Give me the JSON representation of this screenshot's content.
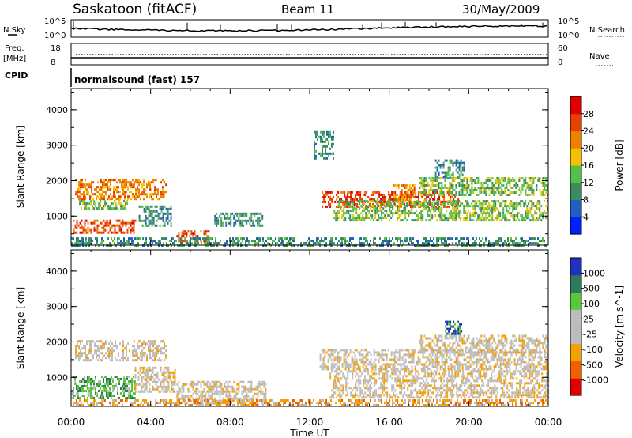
{
  "header": {
    "station": "Saskatoon (fitACF)",
    "beam": "Beam 11",
    "date": "30/May/2009"
  },
  "noise_panel": {
    "left_label": "N.Sky",
    "right_label": "N.Search",
    "left_ticks": [
      "10^5",
      "10^0"
    ],
    "right_ticks": [
      "10^5",
      "10^0"
    ]
  },
  "freq_panel": {
    "left_label_1": "Freq.",
    "left_label_2": "[MHz]",
    "right_label": "Nave",
    "left_ticks": [
      "18",
      "8"
    ],
    "right_ticks": [
      "60",
      "0"
    ]
  },
  "cpid": {
    "label": "CPID",
    "text": "normalsound (fast) 157"
  },
  "colors": {
    "power": [
      "#0020ff",
      "#1f5fbf",
      "#3c8a60",
      "#55c048",
      "#f4c000",
      "#f08000",
      "#e84000",
      "#e00000"
    ],
    "velocity": [
      "#e00000",
      "#f06000",
      "#f4a000",
      "#bcbcbc",
      "#bcbcbc",
      "#58c838",
      "#2f7a5c",
      "#2030c0"
    ],
    "ground_scatter": "#bcbcbc"
  },
  "chart_data": [
    {
      "type": "heatmap",
      "title": "Power",
      "ylabel": "Slant Range [km]",
      "xlabel": "",
      "x_ticks": [
        "00:00",
        "04:00",
        "08:00",
        "12:00",
        "16:00",
        "20:00",
        "00:00"
      ],
      "y_ticks": [
        "1000",
        "2000",
        "3000",
        "4000"
      ],
      "ylim": [
        180,
        4600
      ],
      "xlim_hours": [
        0,
        24
      ],
      "colorbar_label": "Power [dB]",
      "colorbar_ticks": [
        "4",
        "8",
        "12",
        "16",
        "20",
        "24",
        "28"
      ],
      "colorbar_range": [
        0,
        32
      ],
      "regions": [
        {
          "t0": 0.2,
          "t1": 4.8,
          "r0": 1450,
          "r1": 2050,
          "level": 5
        },
        {
          "t0": 0.4,
          "t1": 2.8,
          "r0": 1200,
          "r1": 1450,
          "level": 3
        },
        {
          "t0": 0.1,
          "t1": 3.2,
          "r0": 500,
          "r1": 900,
          "level": 6
        },
        {
          "t0": 3.4,
          "t1": 5.0,
          "r0": 700,
          "r1": 1300,
          "level": 2
        },
        {
          "t0": 5.3,
          "t1": 7.0,
          "r0": 330,
          "r1": 600,
          "level": 6
        },
        {
          "t0": 7.2,
          "t1": 9.6,
          "r0": 700,
          "r1": 1100,
          "level": 2
        },
        {
          "t0": 12.2,
          "t1": 13.2,
          "r0": 2600,
          "r1": 3400,
          "level": 2
        },
        {
          "t0": 12.6,
          "t1": 19.5,
          "r0": 1250,
          "r1": 1700,
          "level": 6
        },
        {
          "t0": 13.2,
          "t1": 24.0,
          "r0": 900,
          "r1": 1450,
          "level": 3
        },
        {
          "t0": 16.2,
          "t1": 17.3,
          "r0": 1450,
          "r1": 1900,
          "level": 5
        },
        {
          "t0": 17.5,
          "t1": 24.0,
          "r0": 1600,
          "r1": 2100,
          "level": 3
        },
        {
          "t0": 18.3,
          "t1": 19.8,
          "r0": 2100,
          "r1": 2600,
          "level": 2
        },
        {
          "t0": 0.0,
          "t1": 24.0,
          "r0": 180,
          "r1": 400,
          "level": 2
        }
      ]
    },
    {
      "type": "heatmap",
      "title": "Velocity",
      "ylabel": "Slant Range [km]",
      "xlabel": "Time UT",
      "x_ticks": [
        "00:00",
        "04:00",
        "08:00",
        "12:00",
        "16:00",
        "20:00",
        "00:00"
      ],
      "y_ticks": [
        "1000",
        "2000",
        "3000",
        "4000"
      ],
      "ylim": [
        180,
        4600
      ],
      "xlim_hours": [
        0,
        24
      ],
      "colorbar_label": "Velocity [m s^-1]",
      "colorbar_ticks": [
        "1000",
        "500",
        "100",
        "25",
        "-25",
        "-100",
        "-500",
        "-1000"
      ],
      "regions": [
        {
          "t0": 0.2,
          "t1": 4.8,
          "r0": 1450,
          "r1": 2050,
          "level": 3
        },
        {
          "t0": 0.0,
          "t1": 3.2,
          "r0": 400,
          "r1": 1050,
          "level": 5
        },
        {
          "t0": 3.2,
          "t1": 5.2,
          "r0": 600,
          "r1": 1300,
          "level": 3
        },
        {
          "t0": 5.3,
          "t1": 9.8,
          "r0": 250,
          "r1": 900,
          "level": 3
        },
        {
          "t0": 12.5,
          "t1": 24.0,
          "r0": 1200,
          "r1": 1800,
          "level": 3
        },
        {
          "t0": 13.0,
          "t1": 24.0,
          "r0": 400,
          "r1": 1200,
          "level": 3
        },
        {
          "t0": 17.5,
          "t1": 24.0,
          "r0": 1700,
          "r1": 2200,
          "level": 3
        },
        {
          "t0": 18.8,
          "t1": 19.6,
          "r0": 2200,
          "r1": 2600,
          "level": 6
        },
        {
          "t0": 0.0,
          "t1": 24.0,
          "r0": 180,
          "r1": 380,
          "level": 2
        }
      ]
    }
  ]
}
